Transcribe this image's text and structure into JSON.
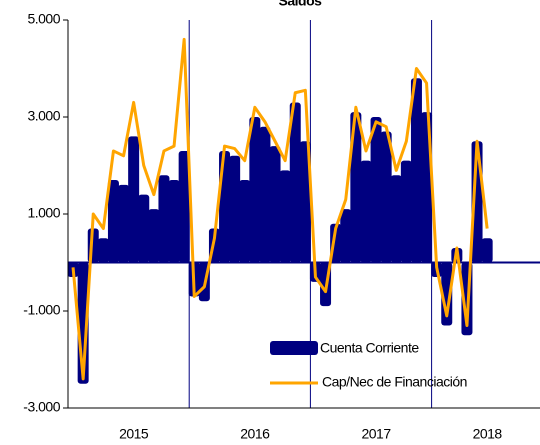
{
  "chart_data": {
    "type": "bar_line",
    "title": "Saldos",
    "categories": [
      null,
      null,
      null,
      null,
      null,
      null,
      "2015",
      null,
      null,
      null,
      null,
      null,
      null,
      null,
      null,
      null,
      null,
      null,
      "2016",
      null,
      null,
      null,
      null,
      null,
      null,
      null,
      null,
      null,
      null,
      null,
      "2017",
      null,
      null,
      null,
      null,
      null,
      null,
      null,
      null,
      null,
      null,
      "2018"
    ],
    "series": [
      {
        "name": "Cuenta Corriente",
        "type": "bar",
        "color": "#000080",
        "values": [
          -300,
          -2500,
          700,
          500,
          1700,
          1600,
          2600,
          1400,
          1100,
          1800,
          1700,
          2300,
          -700,
          -800,
          700,
          2300,
          2200,
          1700,
          3000,
          2800,
          2400,
          1900,
          3300,
          2500,
          -400,
          -900,
          800,
          1100,
          3100,
          2100,
          3000,
          2700,
          1800,
          2100,
          3800,
          3100,
          -300,
          -1300,
          300,
          -1500,
          2500,
          500
        ]
      },
      {
        "name": "Cap/Nec de Financiación",
        "type": "line",
        "color": "#ffa500",
        "values": [
          -100,
          -2400,
          1000,
          700,
          2300,
          2200,
          3300,
          2000,
          1400,
          2300,
          2400,
          4600,
          -700,
          -500,
          500,
          2400,
          2350,
          2100,
          3200,
          2900,
          2500,
          2100,
          3500,
          3550,
          -300,
          -600,
          700,
          1300,
          3200,
          2300,
          2900,
          2800,
          1900,
          2500,
          4000,
          3700,
          -100,
          -1100,
          300,
          -1300,
          2500,
          700
        ]
      }
    ],
    "ylim": [
      -3000,
      5000
    ],
    "yticks": [
      {
        "value": 5000,
        "label": "5.000"
      },
      {
        "value": 3000,
        "label": "3.000"
      },
      {
        "value": 1000,
        "label": "1.000"
      },
      {
        "value": -1000,
        "label": "-1.000"
      },
      {
        "value": -3000,
        "label": "-3.000"
      }
    ],
    "legend": "bottom-right"
  }
}
